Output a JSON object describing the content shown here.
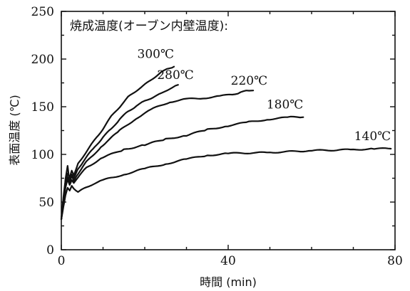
{
  "chart_data": {
    "type": "line",
    "title": "焼成温度(オーブン内壁温度):",
    "xlabel": "時間 (min)",
    "ylabel": "表面温度 (℃)",
    "xlim": [
      0,
      80
    ],
    "ylim": [
      0,
      250
    ],
    "xticks": [
      0,
      40,
      80
    ],
    "yticks": [
      0,
      50,
      100,
      150,
      200,
      250
    ],
    "series": [
      {
        "name": "300℃",
        "x": [
          0,
          0.5,
          1,
          1.5,
          2,
          2.5,
          3,
          4,
          6,
          8,
          10,
          12,
          14,
          16,
          18,
          20,
          22,
          24,
          26,
          27
        ],
        "y": [
          32,
          52,
          68,
          80,
          76,
          83,
          78,
          90,
          103,
          115,
          127,
          140,
          150,
          160,
          167,
          173,
          180,
          186,
          191,
          192
        ]
      },
      {
        "name": "280℃",
        "x": [
          0,
          0.5,
          1,
          1.5,
          2,
          2.5,
          3,
          4,
          6,
          8,
          10,
          12,
          14,
          16,
          18,
          20,
          22,
          24,
          26,
          28
        ],
        "y": [
          32,
          50,
          66,
          76,
          73,
          79,
          75,
          85,
          97,
          108,
          118,
          127,
          137,
          145,
          151,
          156,
          160,
          164,
          169,
          173
        ]
      },
      {
        "name": "220℃",
        "x": [
          0,
          0.5,
          1,
          1.5,
          2,
          2.5,
          3,
          4,
          6,
          10,
          14,
          18,
          22,
          26,
          30,
          34,
          38,
          41,
          43,
          45,
          46
        ],
        "y": [
          32,
          55,
          74,
          88,
          70,
          78,
          72,
          80,
          92,
          110,
          125,
          138,
          148,
          155,
          158,
          159,
          161,
          163,
          165,
          167,
          167
        ]
      },
      {
        "name": "180℃",
        "x": [
          0,
          0.5,
          1,
          1.5,
          2,
          2.5,
          3,
          4,
          6,
          10,
          15,
          20,
          25,
          30,
          35,
          40,
          45,
          50,
          55,
          58
        ],
        "y": [
          32,
          50,
          65,
          74,
          68,
          73,
          70,
          76,
          86,
          97,
          105,
          110,
          116,
          120,
          126,
          130,
          134,
          137,
          139,
          139
        ]
      },
      {
        "name": "140℃",
        "x": [
          0,
          0.5,
          1,
          1.5,
          2,
          2.5,
          3,
          4,
          6,
          10,
          15,
          20,
          25,
          30,
          35,
          40,
          50,
          60,
          70,
          75,
          79
        ],
        "y": [
          32,
          45,
          57,
          65,
          62,
          67,
          64,
          60,
          66,
          73,
          79,
          85,
          90,
          95,
          99,
          101,
          102,
          104,
          105,
          106,
          106
        ]
      }
    ]
  }
}
